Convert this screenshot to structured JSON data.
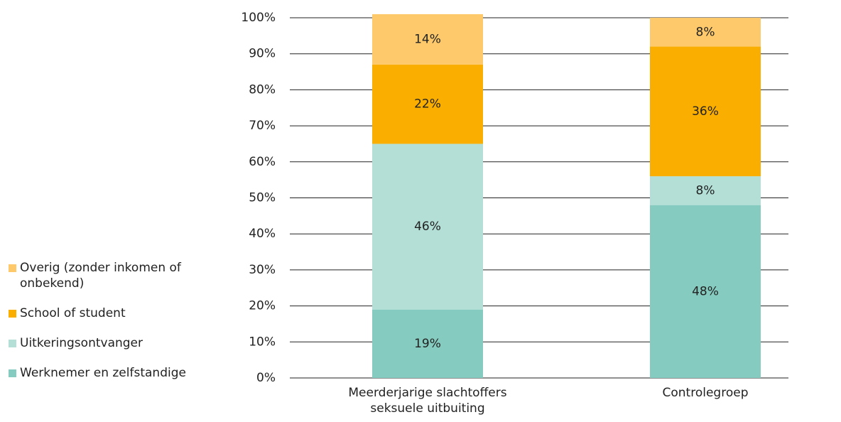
{
  "chart_data": {
    "type": "stacked_bar",
    "categories": [
      "Meerderjarige slachtoffers seksuele uitbuiting",
      "Controlegroep"
    ],
    "series": [
      {
        "name": "Werknemer en zelfstandige",
        "color": "#85cbbf",
        "values": [
          19,
          48
        ],
        "value_labels": [
          "19%",
          "48%"
        ]
      },
      {
        "name": "Uitkeringsontvanger",
        "color": "#b3dfd6",
        "values": [
          46,
          8
        ],
        "value_labels": [
          "46%",
          "8%"
        ]
      },
      {
        "name": "School of student",
        "color": "#f9ae00",
        "values": [
          22,
          36
        ],
        "value_labels": [
          "22%",
          "36%"
        ]
      },
      {
        "name": "Overig (zonder inkomen of onbekend)",
        "color": "#fdc96a",
        "values": [
          14,
          8
        ],
        "value_labels": [
          "14%",
          "8%"
        ]
      }
    ],
    "ylim": [
      0,
      100
    ],
    "yticks": [
      {
        "value": 0,
        "label": "0%"
      },
      {
        "value": 10,
        "label": "10%"
      },
      {
        "value": 20,
        "label": "20%"
      },
      {
        "value": 30,
        "label": "30%"
      },
      {
        "value": 40,
        "label": "40%"
      },
      {
        "value": 50,
        "label": "50%"
      },
      {
        "value": 60,
        "label": "60%"
      },
      {
        "value": 70,
        "label": "70%"
      },
      {
        "value": 80,
        "label": "80%"
      },
      {
        "value": 90,
        "label": "90%"
      },
      {
        "value": 100,
        "label": "100%"
      }
    ],
    "grid": true,
    "legend": "left"
  }
}
